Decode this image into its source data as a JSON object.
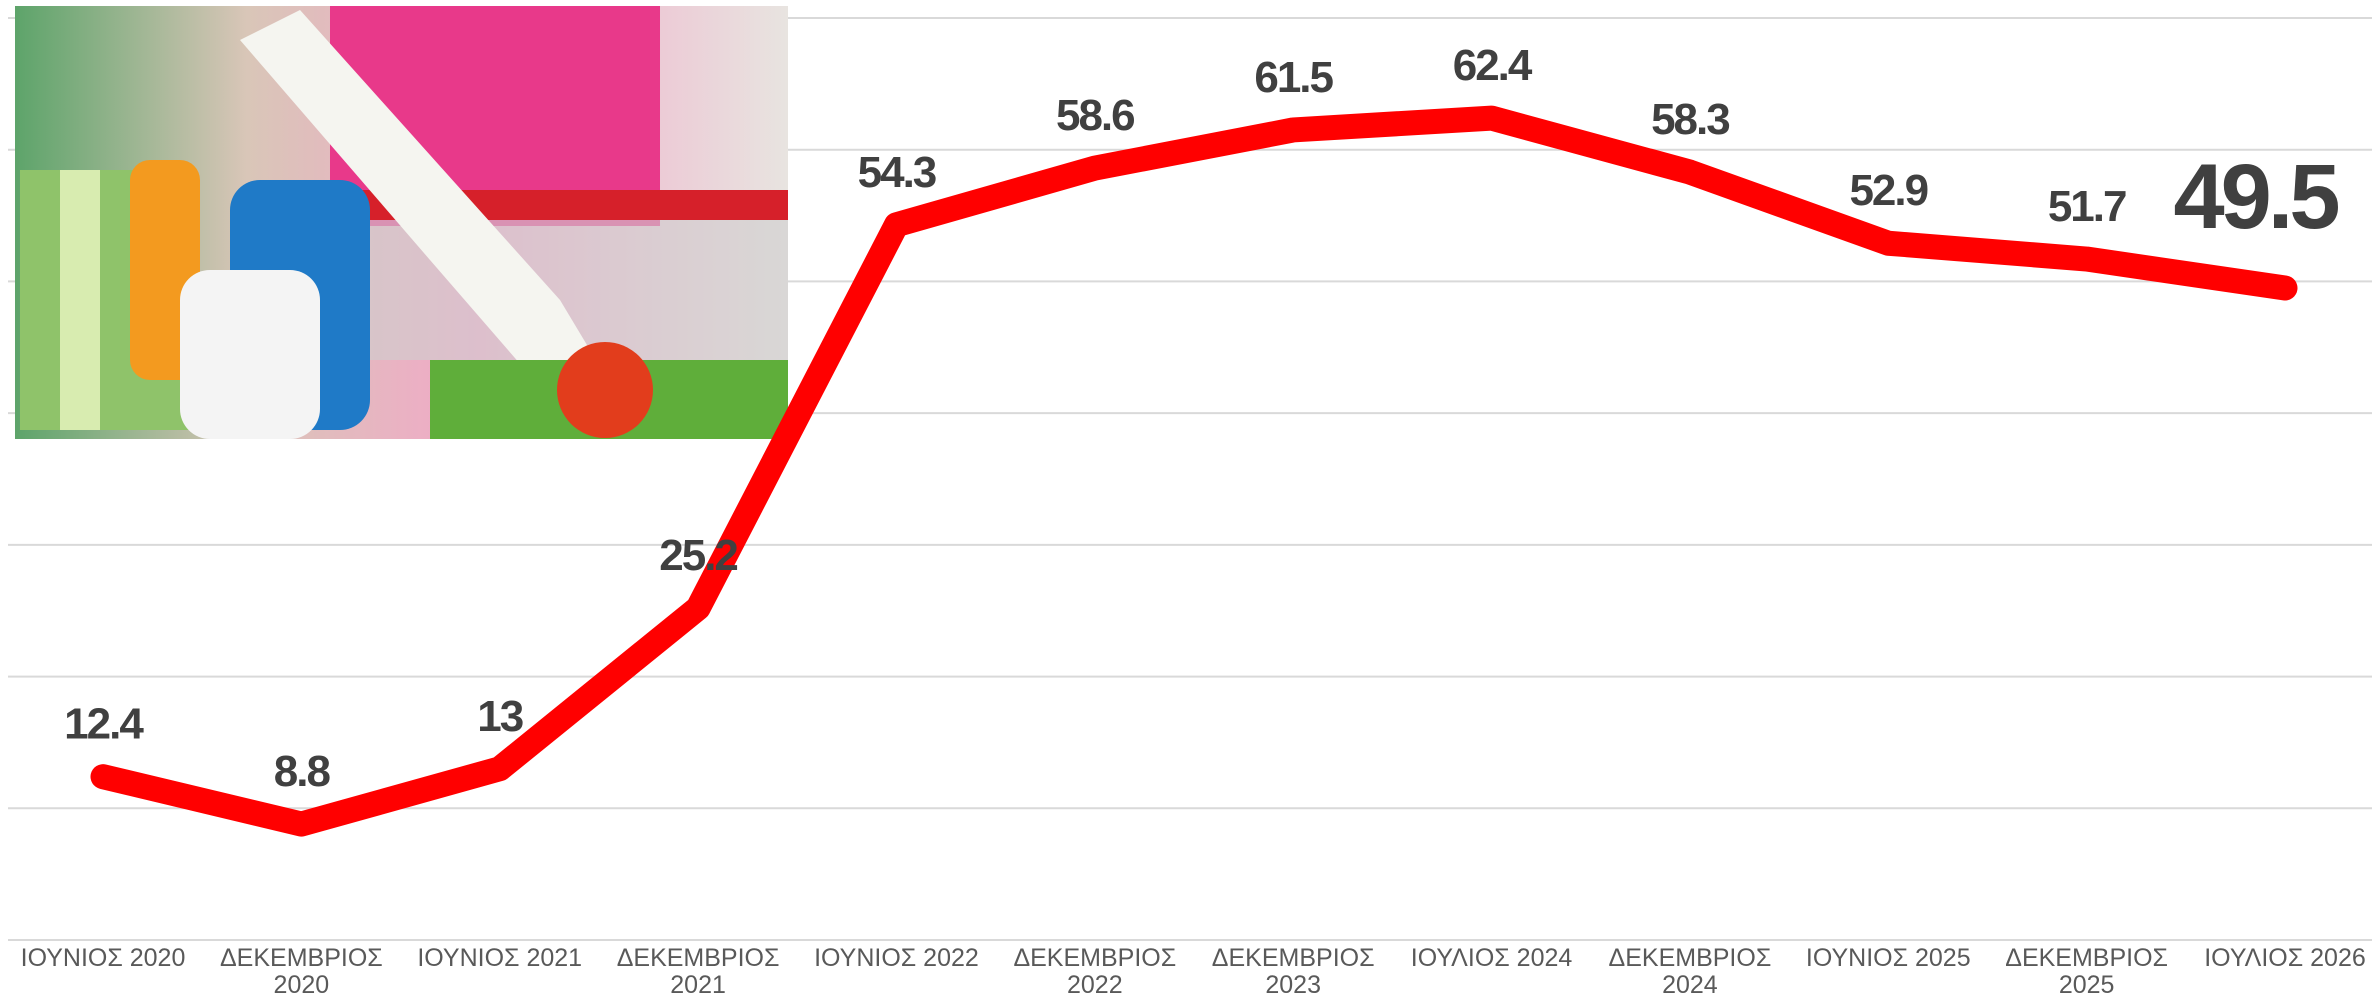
{
  "chart_data": {
    "type": "line",
    "categories": [
      "ΙΟΥΝΙΟΣ 2020",
      "ΔΕΚΕΜΒΡΙΟΣ 2020",
      "ΙΟΥΝΙΟΣ 2021",
      "ΔΕΚΕΜΒΡΙΟΣ 2021",
      "ΙΟΥΝΙΟΣ 2022",
      "ΔΕΚΕΜΒΡΙΟΣ 2022",
      "ΔΕΚΕΜΒΡΙΟΣ 2023",
      "ΙΟΥΛΙΟΣ 2024",
      "ΔΕΚΕΜΒΡΙΟΣ 2024",
      "ΙΟΥΝΙΟΣ 2025",
      "ΔΕΚΕΜΒΡΙΟΣ 2025",
      "ΙΟΥΛΙΟΣ 2026"
    ],
    "values": [
      12.4,
      8.8,
      13,
      25.2,
      54.3,
      58.6,
      61.5,
      62.4,
      58.3,
      52.9,
      51.7,
      49.5
    ],
    "color": "#ff0000",
    "ylim": [
      0,
      70
    ],
    "yticks": [
      0,
      10,
      20,
      30,
      40,
      50,
      60,
      70
    ],
    "grid": true
  }
}
